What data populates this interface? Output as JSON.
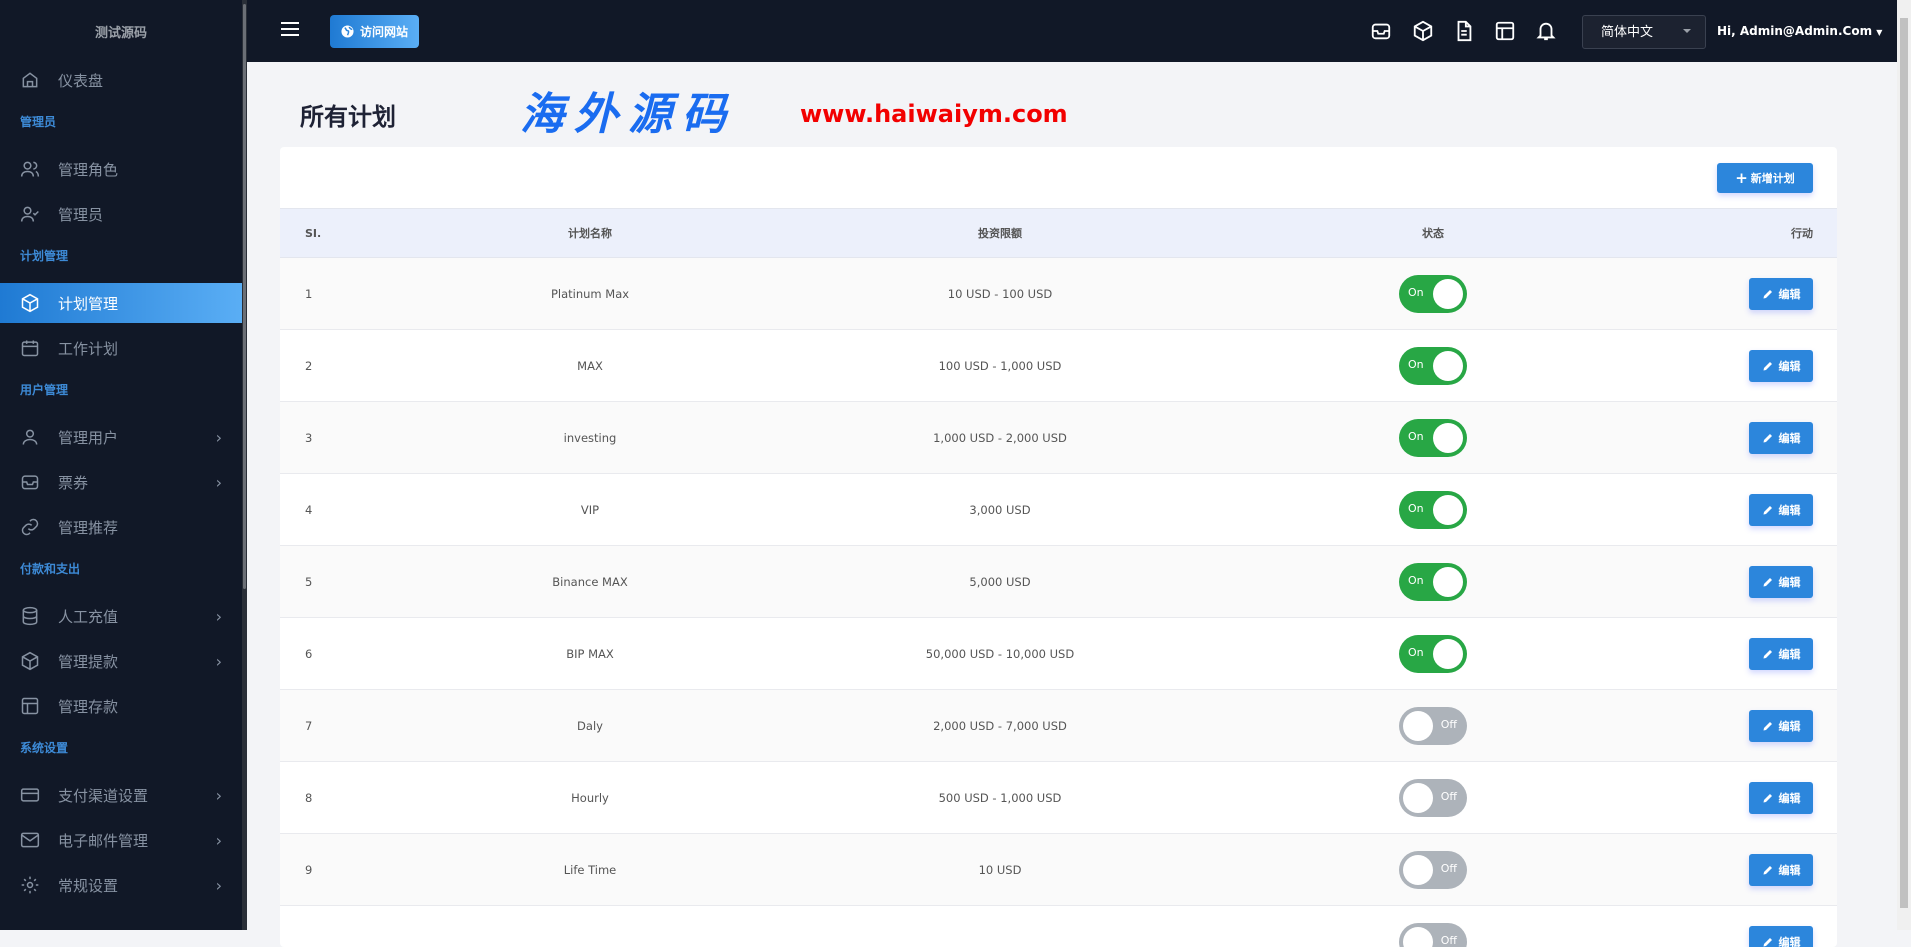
{
  "sidebar": {
    "brand": "测试源码",
    "items": [
      {
        "type": "item",
        "label": "仪表盘",
        "icon": "home-icon"
      },
      {
        "type": "section",
        "label": "管理员"
      },
      {
        "type": "item",
        "label": "管理角色",
        "icon": "users-icon"
      },
      {
        "type": "item",
        "label": "管理员",
        "icon": "user-check-icon"
      },
      {
        "type": "section",
        "label": "计划管理"
      },
      {
        "type": "item",
        "label": "计划管理",
        "icon": "box-icon",
        "active": true
      },
      {
        "type": "item",
        "label": "工作计划",
        "icon": "calendar-icon"
      },
      {
        "type": "section",
        "label": "用户管理"
      },
      {
        "type": "item",
        "label": "管理用户",
        "icon": "user-icon",
        "chevron": true
      },
      {
        "type": "item",
        "label": "票券",
        "icon": "inbox-icon",
        "chevron": true
      },
      {
        "type": "item",
        "label": "管理推荐",
        "icon": "link-icon"
      },
      {
        "type": "section",
        "label": "付款和支出"
      },
      {
        "type": "item",
        "label": "人工充值",
        "icon": "database-icon",
        "chevron": true
      },
      {
        "type": "item",
        "label": "管理提款",
        "icon": "box-icon",
        "chevron": true
      },
      {
        "type": "item",
        "label": "管理存款",
        "icon": "layout-icon"
      },
      {
        "type": "section",
        "label": "系统设置"
      },
      {
        "type": "item",
        "label": "支付渠道设置",
        "icon": "credit-card-icon",
        "chevron": true
      },
      {
        "type": "item",
        "label": "电子邮件管理",
        "icon": "mail-icon",
        "chevron": true
      },
      {
        "type": "item",
        "label": "常规设置",
        "icon": "gear-icon",
        "chevron": true
      }
    ]
  },
  "topbar": {
    "visit_label": "访问网站",
    "language": "简体中文",
    "user": "Hi, Admin@Admin.Com",
    "icons": [
      "inbox-icon",
      "box-icon",
      "file-icon",
      "layout-icon",
      "bell-icon"
    ]
  },
  "page": {
    "title": "所有计划",
    "add_label": "新增计划"
  },
  "table": {
    "headers": [
      "SI.",
      "计划名称",
      "投资限额",
      "状态",
      "行动"
    ],
    "edit_label": "编辑",
    "rows": [
      {
        "si": "1",
        "name": "Platinum Max",
        "limit": "10 USD - 100 USD",
        "status": "On"
      },
      {
        "si": "2",
        "name": "MAX",
        "limit": "100 USD - 1,000 USD",
        "status": "On"
      },
      {
        "si": "3",
        "name": "investing",
        "limit": "1,000 USD - 2,000 USD",
        "status": "On"
      },
      {
        "si": "4",
        "name": "VIP",
        "limit": "3,000 USD",
        "status": "On"
      },
      {
        "si": "5",
        "name": "Binance MAX",
        "limit": "5,000 USD",
        "status": "On"
      },
      {
        "si": "6",
        "name": "BIP MAX",
        "limit": "50,000 USD - 10,000 USD",
        "status": "On"
      },
      {
        "si": "7",
        "name": "Daly",
        "limit": "2,000 USD - 7,000 USD",
        "status": "Off"
      },
      {
        "si": "8",
        "name": "Hourly",
        "limit": "500 USD - 1,000 USD",
        "status": "Off"
      },
      {
        "si": "9",
        "name": "Life Time",
        "limit": "10 USD",
        "status": "Off"
      },
      {
        "si": "",
        "name": "",
        "limit": "",
        "status": "Off"
      }
    ]
  },
  "watermark": {
    "text": "海外源码",
    "url": "www.haiwaiym.com"
  }
}
